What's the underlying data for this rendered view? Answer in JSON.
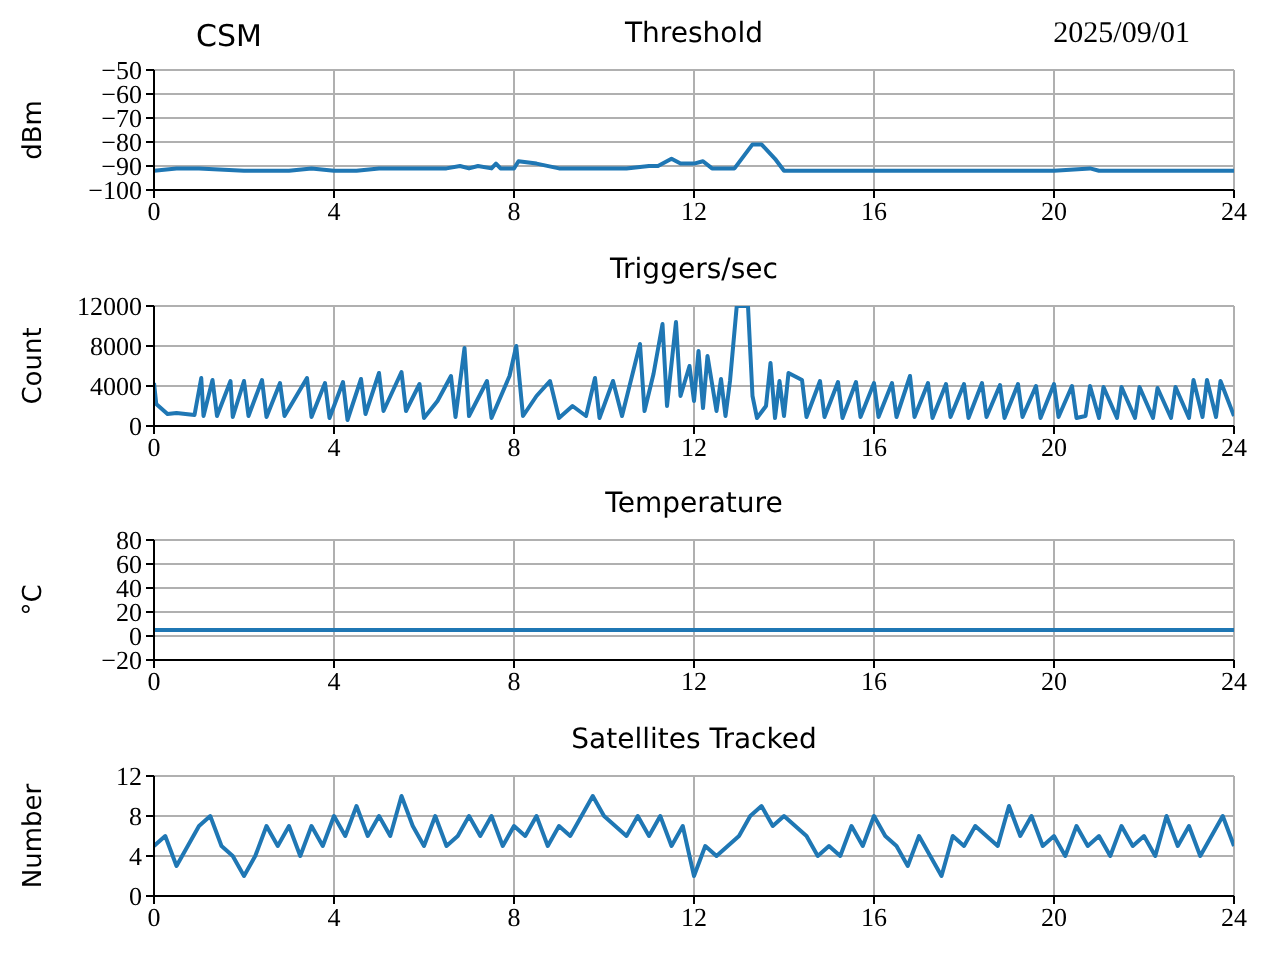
{
  "chart_data": [
    {
      "type": "line",
      "title": "Threshold",
      "annotations": [
        "CSM",
        "2025/09/01"
      ],
      "ylabel": "dBm",
      "color": "#1f77b4",
      "grid": true,
      "xlim": [
        0,
        24
      ],
      "xticks": [
        0,
        4,
        8,
        12,
        16,
        20,
        24
      ],
      "ylim": [
        -100,
        -50
      ],
      "yticks": [
        -100,
        -90,
        -80,
        -70,
        -60,
        -50
      ],
      "x": [
        0,
        0.5,
        1,
        2,
        3,
        3.5,
        4,
        4.5,
        5,
        6,
        6.5,
        6.8,
        7,
        7.2,
        7.5,
        7.6,
        7.7,
        8,
        8.1,
        8.5,
        9,
        10,
        10.5,
        11,
        11.2,
        11.5,
        11.7,
        12,
        12.2,
        12.4,
        12.9,
        13.1,
        13.3,
        13.5,
        13.8,
        14,
        16,
        20,
        20.8,
        21,
        24
      ],
      "values": [
        -92,
        -91,
        -91,
        -92,
        -92,
        -91,
        -92,
        -92,
        -91,
        -91,
        -91,
        -90,
        -91,
        -90,
        -91,
        -89,
        -91,
        -91,
        -88,
        -89,
        -91,
        -91,
        -91,
        -90,
        -90,
        -87,
        -89,
        -89,
        -88,
        -91,
        -91,
        -86,
        -81,
        -81,
        -87,
        -92,
        -92,
        -92,
        -91,
        -92,
        -92
      ]
    },
    {
      "type": "line",
      "title": "Triggers/sec",
      "ylabel": "Count",
      "color": "#1f77b4",
      "grid": true,
      "xlim": [
        0,
        24
      ],
      "xticks": [
        0,
        4,
        8,
        12,
        16,
        20,
        24
      ],
      "ylim": [
        0,
        12000
      ],
      "yticks": [
        0,
        4000,
        8000,
        12000
      ],
      "x": [
        0,
        0.05,
        0.3,
        0.5,
        0.9,
        1.05,
        1.1,
        1.3,
        1.4,
        1.7,
        1.75,
        2.0,
        2.1,
        2.4,
        2.5,
        2.8,
        2.9,
        3.4,
        3.5,
        3.8,
        3.9,
        4.2,
        4.3,
        4.6,
        4.7,
        5.0,
        5.1,
        5.5,
        5.6,
        5.9,
        6.0,
        6.3,
        6.6,
        6.7,
        6.9,
        7.0,
        7.4,
        7.5,
        7.9,
        8.05,
        8.2,
        8.5,
        8.8,
        9.0,
        9.3,
        9.6,
        9.8,
        9.9,
        10.2,
        10.4,
        10.6,
        10.8,
        10.9,
        11.1,
        11.3,
        11.4,
        11.6,
        11.7,
        11.9,
        12.0,
        12.1,
        12.2,
        12.3,
        12.5,
        12.6,
        12.7,
        12.8,
        12.95,
        13.05,
        13.2,
        13.3,
        13.4,
        13.6,
        13.7,
        13.8,
        13.9,
        14.0,
        14.1,
        14.4,
        14.5,
        14.8,
        14.9,
        15.2,
        15.3,
        15.6,
        15.7,
        16.0,
        16.1,
        16.4,
        16.5,
        16.8,
        16.9,
        17.2,
        17.3,
        17.6,
        17.7,
        18.0,
        18.1,
        18.4,
        18.5,
        18.8,
        18.9,
        19.2,
        19.3,
        19.6,
        19.7,
        20.0,
        20.1,
        20.4,
        20.5,
        20.7,
        20.8,
        21.0,
        21.1,
        21.4,
        21.5,
        21.8,
        21.9,
        22.2,
        22.3,
        22.6,
        22.7,
        23.0,
        23.1,
        23.3,
        23.4,
        23.6,
        23.7,
        24.0
      ],
      "values": [
        4300,
        2200,
        1200,
        1300,
        1100,
        4800,
        1000,
        4600,
        1000,
        4500,
        900,
        4500,
        1000,
        4600,
        900,
        4300,
        1000,
        4800,
        900,
        4300,
        800,
        4400,
        600,
        4700,
        1200,
        5300,
        1500,
        5400,
        1500,
        4200,
        800,
        2500,
        5000,
        900,
        7800,
        1000,
        4500,
        800,
        5000,
        8000,
        1000,
        3000,
        4500,
        800,
        2000,
        1000,
        4800,
        800,
        4500,
        1000,
        4600,
        8200,
        1500,
        5200,
        10200,
        2000,
        10400,
        3000,
        6000,
        2500,
        7500,
        1800,
        7000,
        1500,
        4700,
        1000,
        4500,
        12000,
        12000,
        12000,
        3000,
        800,
        2000,
        6300,
        800,
        4500,
        1000,
        5300,
        4600,
        900,
        4500,
        900,
        4400,
        800,
        4400,
        900,
        4300,
        900,
        4300,
        900,
        5000,
        900,
        4300,
        800,
        4200,
        900,
        4200,
        800,
        4300,
        900,
        4100,
        800,
        4200,
        900,
        4000,
        800,
        4200,
        900,
        4000,
        800,
        1000,
        4000,
        800,
        3900,
        800,
        3900,
        800,
        3900,
        800,
        3800,
        800,
        3900,
        800,
        4600,
        900,
        4600,
        900,
        4500,
        1000
      ]
    },
    {
      "type": "line",
      "title": "Temperature",
      "ylabel": "°C",
      "color": "#1f77b4",
      "grid": true,
      "xlim": [
        0,
        24
      ],
      "xticks": [
        0,
        4,
        8,
        12,
        16,
        20,
        24
      ],
      "ylim": [
        -20,
        80
      ],
      "yticks": [
        -20,
        0,
        20,
        40,
        60,
        80
      ],
      "x": [
        0,
        24
      ],
      "values": [
        5,
        5
      ]
    },
    {
      "type": "line",
      "title": "Satellites Tracked",
      "ylabel": "Number",
      "color": "#1f77b4",
      "grid": true,
      "xlim": [
        0,
        24
      ],
      "xticks": [
        0,
        4,
        8,
        12,
        16,
        20,
        24
      ],
      "ylim": [
        0,
        12
      ],
      "yticks": [
        0,
        4,
        8,
        12
      ],
      "x": [
        0,
        0.25,
        0.5,
        0.75,
        1,
        1.25,
        1.5,
        1.75,
        2,
        2.25,
        2.5,
        2.75,
        3,
        3.25,
        3.5,
        3.75,
        4,
        4.25,
        4.5,
        4.75,
        5,
        5.25,
        5.5,
        5.75,
        6,
        6.25,
        6.5,
        6.75,
        7,
        7.25,
        7.5,
        7.75,
        8,
        8.25,
        8.5,
        8.75,
        9,
        9.25,
        9.5,
        9.75,
        10,
        10.25,
        10.5,
        10.75,
        11,
        11.25,
        11.5,
        11.75,
        12,
        12.25,
        12.5,
        12.75,
        13,
        13.25,
        13.5,
        13.75,
        14,
        14.25,
        14.5,
        14.75,
        15,
        15.25,
        15.5,
        15.75,
        16,
        16.25,
        16.5,
        16.75,
        17,
        17.25,
        17.5,
        17.75,
        18,
        18.25,
        18.5,
        18.75,
        19,
        19.25,
        19.5,
        19.75,
        20,
        20.25,
        20.5,
        20.75,
        21,
        21.25,
        21.5,
        21.75,
        22,
        22.25,
        22.5,
        22.75,
        23,
        23.25,
        23.5,
        23.75,
        24
      ],
      "values": [
        5,
        6,
        3,
        5,
        7,
        8,
        5,
        4,
        2,
        4,
        7,
        5,
        7,
        4,
        7,
        5,
        8,
        6,
        9,
        6,
        8,
        6,
        10,
        7,
        5,
        8,
        5,
        6,
        8,
        6,
        8,
        5,
        7,
        6,
        8,
        5,
        7,
        6,
        8,
        10,
        8,
        7,
        6,
        8,
        6,
        8,
        5,
        7,
        2,
        5,
        4,
        5,
        6,
        8,
        9,
        7,
        8,
        7,
        6,
        4,
        5,
        4,
        7,
        5,
        8,
        6,
        5,
        3,
        6,
        4,
        2,
        6,
        5,
        7,
        6,
        5,
        9,
        6,
        8,
        5,
        6,
        4,
        7,
        5,
        6,
        4,
        7,
        5,
        6,
        4,
        8,
        5,
        7,
        4,
        6,
        8,
        5
      ]
    }
  ]
}
